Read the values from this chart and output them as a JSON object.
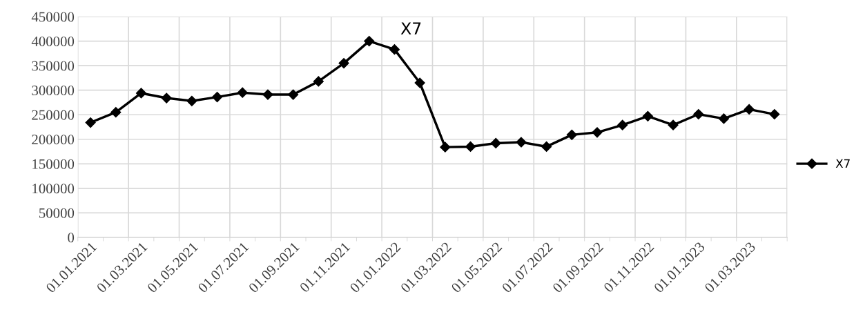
{
  "chart_data": {
    "type": "line",
    "title": "X7",
    "categories": [
      "01.01.2021",
      null,
      "01.03.2021",
      null,
      "01.05.2021",
      null,
      "01.07.2021",
      null,
      "01.09.2021",
      null,
      "01.11.2021",
      null,
      "01.01.2022",
      null,
      "01.03.2022",
      null,
      "01.05.2022",
      null,
      "01.07.2022",
      null,
      "01.09.2022",
      null,
      "01.11.2022",
      null,
      "01.01.2023",
      null,
      "01.03.2023",
      null
    ],
    "series": [
      {
        "name": "X7",
        "color": "#000000",
        "values": [
          234000,
          255000,
          294000,
          284000,
          278000,
          286000,
          295000,
          291000,
          291000,
          318000,
          355000,
          400000,
          383000,
          315000,
          184000,
          185000,
          192000,
          194000,
          185000,
          209000,
          214000,
          229000,
          247000,
          229000,
          251000,
          242000,
          261000,
          251000
        ]
      }
    ],
    "ylim": [
      0,
      450000
    ],
    "yticks": [
      0,
      50000,
      100000,
      150000,
      200000,
      250000,
      300000,
      350000,
      400000,
      450000
    ],
    "grid": true,
    "legend": "right",
    "marker": "diamond",
    "line_style": "solid"
  }
}
